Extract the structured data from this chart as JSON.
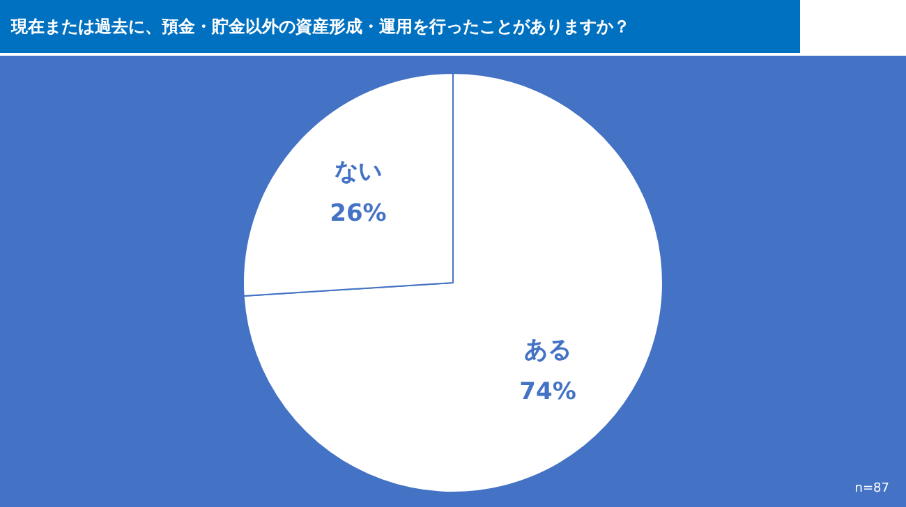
{
  "chart_data": {
    "type": "pie",
    "title": "現在または過去に、預金・貯金以外の資産形成・運用を行ったことがありますか？",
    "categories": [
      "ある",
      "ない"
    ],
    "values": [
      74,
      26
    ],
    "value_labels": [
      "74%",
      "26%"
    ],
    "colors": [
      "#ffffff",
      "#ffffff"
    ],
    "legend": false,
    "annotations": [
      "n=87"
    ]
  }
}
